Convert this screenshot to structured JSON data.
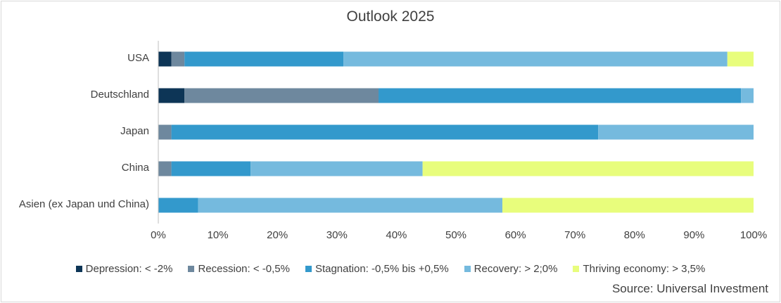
{
  "chart_data": {
    "type": "bar",
    "orientation": "horizontal",
    "stacked": "percent",
    "title": "Outlook 2025",
    "categories": [
      "USA",
      "Deutschland",
      "Japan",
      "China",
      "Asien (ex Japan und China)"
    ],
    "series": [
      {
        "name": "Depression: < -2%",
        "color": "#0d3556",
        "values": [
          2.2,
          4.4,
          0,
          0,
          0
        ]
      },
      {
        "name": "Recession: < -0,5%",
        "color": "#6e889e",
        "values": [
          2.2,
          32.6,
          2.2,
          2.2,
          0
        ]
      },
      {
        "name": "Stagnation: -0,5% bis +0,5%",
        "color": "#3399cc",
        "values": [
          26.7,
          60.9,
          71.7,
          13.3,
          6.7
        ]
      },
      {
        "name": "Recovery: > 2;0%",
        "color": "#75bade",
        "values": [
          64.5,
          2.1,
          26.1,
          28.9,
          51.1
        ]
      },
      {
        "name": "Thriving economy: > 3,5%",
        "color": "#e8fd7c",
        "values": [
          4.4,
          0,
          0,
          55.6,
          42.2
        ]
      }
    ],
    "xlim": [
      0,
      100
    ],
    "xticks": [
      "0%",
      "10%",
      "20%",
      "30%",
      "40%",
      "50%",
      "60%",
      "70%",
      "80%",
      "90%",
      "100%"
    ],
    "legend_position": "bottom",
    "grid": false
  },
  "source": "Source: Universal Investment"
}
